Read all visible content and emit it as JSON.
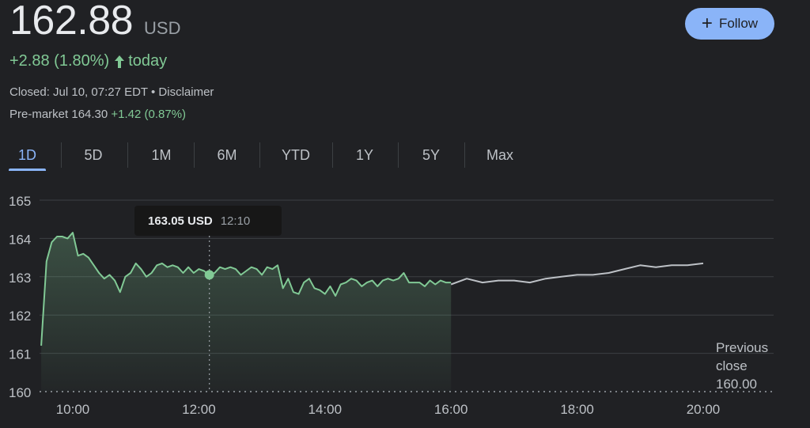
{
  "quote": {
    "price": "162.88",
    "currency": "USD",
    "change": "+2.88 (1.80%)",
    "change_suffix": "today",
    "closed_text": "Closed: Jul 10, 07:27 EDT",
    "disclaimer": "Disclaimer",
    "premarket_label": "Pre-market 164.30",
    "premarket_change": "+1.42 (0.87%)"
  },
  "follow": {
    "label": "Follow"
  },
  "tabs": [
    "1D",
    "5D",
    "1M",
    "6M",
    "YTD",
    "1Y",
    "5Y",
    "Max"
  ],
  "active_tab": "1D",
  "tooltip": {
    "value": "163.05 USD",
    "time": "12:10"
  },
  "previous_close": {
    "line1": "Previous",
    "line2": "close",
    "value": "160.00"
  },
  "colors": {
    "up": "#81c995",
    "extended": "#bdc1c6",
    "accent": "#8ab4f8"
  },
  "chart_data": {
    "type": "line",
    "x_unit": "time",
    "xlim": [
      "09:30",
      "21:00"
    ],
    "ylim": [
      160,
      165
    ],
    "y_ticks": [
      160,
      161,
      162,
      163,
      164,
      165
    ],
    "x_ticks": [
      "10:00",
      "12:00",
      "14:00",
      "16:00",
      "18:00",
      "20:00"
    ],
    "previous_close": 160.0,
    "grid": true,
    "tooltip_point": {
      "x": "12:10",
      "y": 163.05
    },
    "series": [
      {
        "session": "regular",
        "x": [
          "09:30",
          "09:35",
          "09:40",
          "09:45",
          "09:50",
          "09:55",
          "10:00",
          "10:05",
          "10:10",
          "10:15",
          "10:20",
          "10:25",
          "10:30",
          "10:35",
          "10:40",
          "10:45",
          "10:50",
          "10:55",
          "11:00",
          "11:05",
          "11:10",
          "11:15",
          "11:20",
          "11:25",
          "11:30",
          "11:35",
          "11:40",
          "11:45",
          "11:50",
          "11:55",
          "12:00",
          "12:05",
          "12:10",
          "12:15",
          "12:20",
          "12:25",
          "12:30",
          "12:35",
          "12:40",
          "12:45",
          "12:50",
          "12:55",
          "13:00",
          "13:05",
          "13:10",
          "13:15",
          "13:20",
          "13:25",
          "13:30",
          "13:35",
          "13:40",
          "13:45",
          "13:50",
          "13:55",
          "14:00",
          "14:05",
          "14:10",
          "14:15",
          "14:20",
          "14:25",
          "14:30",
          "14:35",
          "14:40",
          "14:45",
          "14:50",
          "14:55",
          "15:00",
          "15:05",
          "15:10",
          "15:15",
          "15:20",
          "15:25",
          "15:30",
          "15:35",
          "15:40",
          "15:45",
          "15:50",
          "15:55",
          "16:00"
        ],
        "y": [
          161.2,
          163.4,
          163.9,
          164.05,
          164.05,
          164.0,
          164.15,
          163.55,
          163.6,
          163.5,
          163.3,
          163.1,
          162.95,
          163.05,
          162.9,
          162.6,
          163.0,
          163.1,
          163.35,
          163.2,
          163.0,
          163.1,
          163.3,
          163.35,
          163.25,
          163.3,
          163.25,
          163.1,
          163.25,
          163.1,
          163.2,
          163.15,
          163.05,
          163.1,
          163.25,
          163.2,
          163.25,
          163.2,
          163.05,
          163.15,
          163.25,
          163.2,
          163.05,
          163.25,
          163.2,
          163.3,
          162.7,
          162.95,
          162.6,
          162.55,
          162.85,
          162.95,
          162.7,
          162.65,
          162.55,
          162.75,
          162.5,
          162.8,
          162.85,
          162.95,
          162.9,
          162.75,
          162.85,
          162.9,
          162.75,
          162.9,
          162.95,
          162.9,
          162.95,
          163.1,
          162.85,
          162.85,
          162.85,
          162.75,
          162.9,
          162.8,
          162.9,
          162.85,
          162.85
        ]
      },
      {
        "session": "after-hours",
        "x": [
          "16:00",
          "16:15",
          "16:30",
          "16:45",
          "17:00",
          "17:15",
          "17:30",
          "17:45",
          "18:00",
          "18:15",
          "18:30",
          "18:45",
          "19:00",
          "19:15",
          "19:30",
          "19:45",
          "20:00"
        ],
        "y": [
          162.8,
          162.95,
          162.85,
          162.9,
          162.9,
          162.85,
          162.95,
          163.0,
          163.05,
          163.05,
          163.1,
          163.2,
          163.3,
          163.25,
          163.3,
          163.3,
          163.35
        ]
      }
    ]
  }
}
